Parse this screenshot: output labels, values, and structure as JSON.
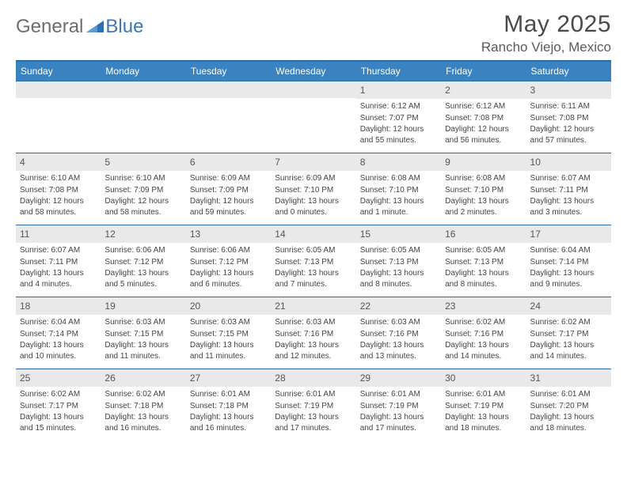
{
  "brand": {
    "part1": "General",
    "part2": "Blue"
  },
  "title": "May 2025",
  "location": "Rancho Viejo, Mexico",
  "colors": {
    "header_bar": "#3b83c0",
    "rule": "#2a6aa8",
    "daynum_bg": "#e9e9e9",
    "text": "#444444",
    "brand_gray": "#6d6d6d",
    "brand_blue": "#3b78b5"
  },
  "dow": [
    "Sunday",
    "Monday",
    "Tuesday",
    "Wednesday",
    "Thursday",
    "Friday",
    "Saturday"
  ],
  "weeks": [
    [
      null,
      null,
      null,
      null,
      {
        "n": "1",
        "sr": "6:12 AM",
        "ss": "7:07 PM",
        "dl": "12 hours and 55 minutes."
      },
      {
        "n": "2",
        "sr": "6:12 AM",
        "ss": "7:08 PM",
        "dl": "12 hours and 56 minutes."
      },
      {
        "n": "3",
        "sr": "6:11 AM",
        "ss": "7:08 PM",
        "dl": "12 hours and 57 minutes."
      }
    ],
    [
      {
        "n": "4",
        "sr": "6:10 AM",
        "ss": "7:08 PM",
        "dl": "12 hours and 58 minutes."
      },
      {
        "n": "5",
        "sr": "6:10 AM",
        "ss": "7:09 PM",
        "dl": "12 hours and 58 minutes."
      },
      {
        "n": "6",
        "sr": "6:09 AM",
        "ss": "7:09 PM",
        "dl": "12 hours and 59 minutes."
      },
      {
        "n": "7",
        "sr": "6:09 AM",
        "ss": "7:10 PM",
        "dl": "13 hours and 0 minutes."
      },
      {
        "n": "8",
        "sr": "6:08 AM",
        "ss": "7:10 PM",
        "dl": "13 hours and 1 minute."
      },
      {
        "n": "9",
        "sr": "6:08 AM",
        "ss": "7:10 PM",
        "dl": "13 hours and 2 minutes."
      },
      {
        "n": "10",
        "sr": "6:07 AM",
        "ss": "7:11 PM",
        "dl": "13 hours and 3 minutes."
      }
    ],
    [
      {
        "n": "11",
        "sr": "6:07 AM",
        "ss": "7:11 PM",
        "dl": "13 hours and 4 minutes."
      },
      {
        "n": "12",
        "sr": "6:06 AM",
        "ss": "7:12 PM",
        "dl": "13 hours and 5 minutes."
      },
      {
        "n": "13",
        "sr": "6:06 AM",
        "ss": "7:12 PM",
        "dl": "13 hours and 6 minutes."
      },
      {
        "n": "14",
        "sr": "6:05 AM",
        "ss": "7:13 PM",
        "dl": "13 hours and 7 minutes."
      },
      {
        "n": "15",
        "sr": "6:05 AM",
        "ss": "7:13 PM",
        "dl": "13 hours and 8 minutes."
      },
      {
        "n": "16",
        "sr": "6:05 AM",
        "ss": "7:13 PM",
        "dl": "13 hours and 8 minutes."
      },
      {
        "n": "17",
        "sr": "6:04 AM",
        "ss": "7:14 PM",
        "dl": "13 hours and 9 minutes."
      }
    ],
    [
      {
        "n": "18",
        "sr": "6:04 AM",
        "ss": "7:14 PM",
        "dl": "13 hours and 10 minutes."
      },
      {
        "n": "19",
        "sr": "6:03 AM",
        "ss": "7:15 PM",
        "dl": "13 hours and 11 minutes."
      },
      {
        "n": "20",
        "sr": "6:03 AM",
        "ss": "7:15 PM",
        "dl": "13 hours and 11 minutes."
      },
      {
        "n": "21",
        "sr": "6:03 AM",
        "ss": "7:16 PM",
        "dl": "13 hours and 12 minutes."
      },
      {
        "n": "22",
        "sr": "6:03 AM",
        "ss": "7:16 PM",
        "dl": "13 hours and 13 minutes."
      },
      {
        "n": "23",
        "sr": "6:02 AM",
        "ss": "7:16 PM",
        "dl": "13 hours and 14 minutes."
      },
      {
        "n": "24",
        "sr": "6:02 AM",
        "ss": "7:17 PM",
        "dl": "13 hours and 14 minutes."
      }
    ],
    [
      {
        "n": "25",
        "sr": "6:02 AM",
        "ss": "7:17 PM",
        "dl": "13 hours and 15 minutes."
      },
      {
        "n": "26",
        "sr": "6:02 AM",
        "ss": "7:18 PM",
        "dl": "13 hours and 16 minutes."
      },
      {
        "n": "27",
        "sr": "6:01 AM",
        "ss": "7:18 PM",
        "dl": "13 hours and 16 minutes."
      },
      {
        "n": "28",
        "sr": "6:01 AM",
        "ss": "7:19 PM",
        "dl": "13 hours and 17 minutes."
      },
      {
        "n": "29",
        "sr": "6:01 AM",
        "ss": "7:19 PM",
        "dl": "13 hours and 17 minutes."
      },
      {
        "n": "30",
        "sr": "6:01 AM",
        "ss": "7:19 PM",
        "dl": "13 hours and 18 minutes."
      },
      {
        "n": "31",
        "sr": "6:01 AM",
        "ss": "7:20 PM",
        "dl": "13 hours and 18 minutes."
      }
    ]
  ],
  "labels": {
    "sunrise": "Sunrise:",
    "sunset": "Sunset:",
    "daylight": "Daylight:"
  }
}
